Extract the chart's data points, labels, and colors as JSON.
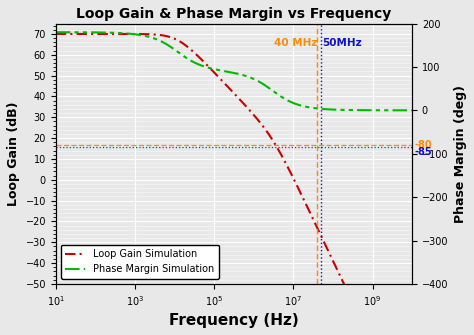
{
  "title": "Loop Gain & Phase Margin vs Frequency",
  "xlabel": "Frequency (Hz)",
  "ylabel_left": "Loop Gain (dB)",
  "ylabel_right": "Phase Margin (deg)",
  "xlim": [
    10.0,
    10000000000.0
  ],
  "ylim_left": [
    -50,
    75
  ],
  "ylim_right": [
    -400,
    200
  ],
  "yticks_left": [
    -50,
    -40,
    -30,
    -20,
    -10,
    0,
    10,
    20,
    30,
    40,
    50,
    60,
    70
  ],
  "yticks_right": [
    -400,
    -300,
    -200,
    -100,
    0,
    100,
    200
  ],
  "freq_line_40MHz": 40000000.0,
  "freq_line_50MHz": 50000000.0,
  "hline_gain_dB": 16.5,
  "hline_phase_deg": -85,
  "hline_orange_phase_deg": -80,
  "annotation_40MHz": "40 MHz",
  "annotation_50MHz": "50MHz",
  "annotation_80": "-80",
  "annotation_85": "-85",
  "loop_gain_color": "#CC0000",
  "phase_margin_color": "#00BB00",
  "vline_40_color": "#FF8C00",
  "vline_50_color": "#1111CC",
  "hline_orange_color": "#FF8C00",
  "hline_blue_color": "#1111CC",
  "legend_loop": "Loop Gain Simulation",
  "legend_phase": "Phase Margin Simulation",
  "bg_color": "#e8e8e8",
  "grid_color": "white"
}
